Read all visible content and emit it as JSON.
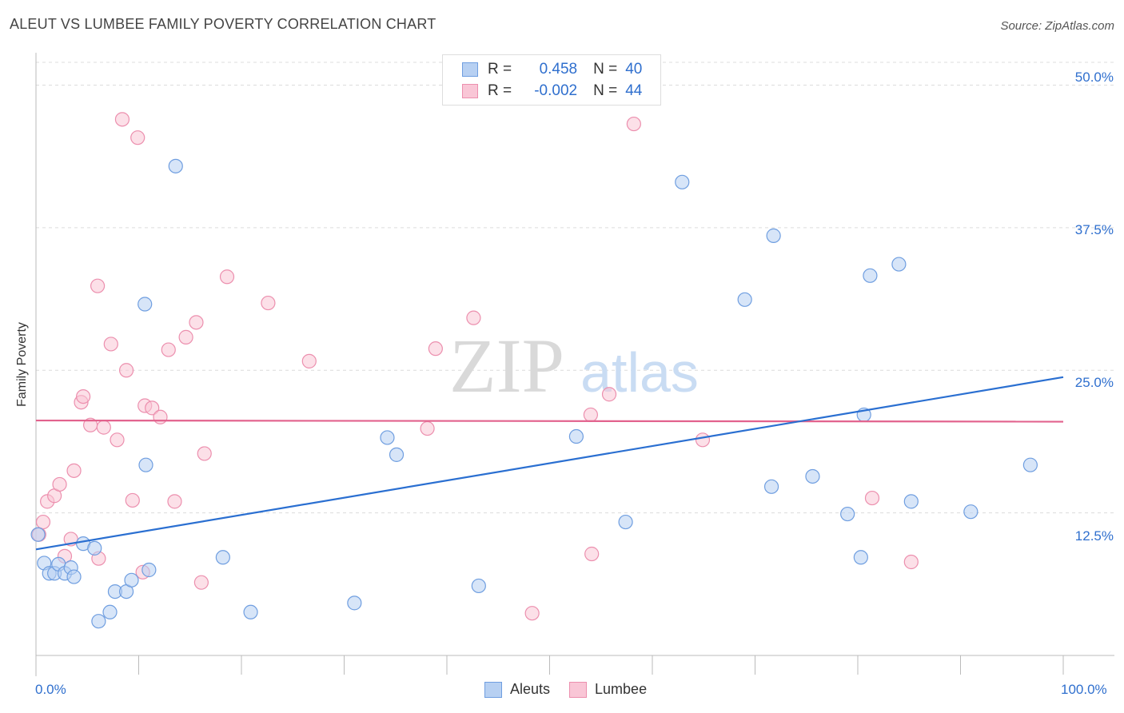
{
  "header": {
    "title": "ALEUT VS LUMBEE FAMILY POVERTY CORRELATION CHART",
    "source": "Source: ZipAtlas.com"
  },
  "legend": {
    "r_label": "R =",
    "n_label": "N =",
    "rows": [
      {
        "r": "0.458",
        "n": "40"
      },
      {
        "r": "-0.002",
        "n": "44"
      }
    ]
  },
  "watermark": {
    "zip": "ZIP",
    "atlas": "atlas"
  },
  "colors": {
    "blue_fill": "#b7d0f2",
    "blue_stroke": "#6f9ee0",
    "blue_line": "#2a6fd1",
    "pink_fill": "#f9c6d6",
    "pink_stroke": "#ec8fae",
    "pink_line": "#e2628d"
  },
  "chart_data": {
    "type": "scatter",
    "title": "ALEUT VS LUMBEE FAMILY POVERTY CORRELATION CHART",
    "xlabel": "",
    "ylabel": "Family Poverty",
    "xlim": [
      0,
      100
    ],
    "ylim": [
      0,
      52
    ],
    "x_tick_labels": [
      "0.0%",
      "100.0%"
    ],
    "y_ticks": [
      12.5,
      25.0,
      37.5,
      50.0
    ],
    "y_tick_labels": [
      "12.5%",
      "25.0%",
      "37.5%",
      "50.0%"
    ],
    "grid": true,
    "legend_position": "top-center",
    "series": [
      {
        "name": "Aleuts",
        "r": 0.458,
        "n": 40,
        "trend": [
          [
            0,
            9.3
          ],
          [
            100,
            24.4
          ]
        ],
        "points": [
          [
            0.2,
            10.6
          ],
          [
            0.8,
            8.1
          ],
          [
            1.3,
            7.2
          ],
          [
            1.8,
            7.2
          ],
          [
            2.2,
            8.0
          ],
          [
            2.8,
            7.2
          ],
          [
            3.4,
            7.7
          ],
          [
            3.7,
            6.9
          ],
          [
            4.6,
            9.8
          ],
          [
            5.7,
            9.4
          ],
          [
            6.1,
            3.0
          ],
          [
            7.2,
            3.8
          ],
          [
            7.7,
            5.6
          ],
          [
            8.8,
            5.6
          ],
          [
            9.3,
            6.6
          ],
          [
            10.6,
            30.8
          ],
          [
            10.7,
            16.7
          ],
          [
            11.0,
            7.5
          ],
          [
            13.6,
            42.9
          ],
          [
            18.2,
            8.6
          ],
          [
            20.9,
            3.8
          ],
          [
            31.0,
            4.6
          ],
          [
            34.2,
            19.1
          ],
          [
            35.1,
            17.6
          ],
          [
            43.1,
            6.1
          ],
          [
            52.6,
            19.2
          ],
          [
            57.4,
            11.7
          ],
          [
            62.9,
            41.5
          ],
          [
            69.0,
            31.2
          ],
          [
            71.6,
            14.8
          ],
          [
            71.8,
            36.8
          ],
          [
            75.6,
            15.7
          ],
          [
            79.0,
            12.4
          ],
          [
            80.3,
            8.6
          ],
          [
            80.6,
            21.1
          ],
          [
            81.2,
            33.3
          ],
          [
            84.0,
            34.3
          ],
          [
            85.2,
            13.5
          ],
          [
            91.0,
            12.6
          ],
          [
            96.8,
            16.7
          ]
        ]
      },
      {
        "name": "Lumbee",
        "r": -0.002,
        "n": 44,
        "trend": [
          [
            0,
            20.6
          ],
          [
            100,
            20.5
          ]
        ],
        "points": [
          [
            0.3,
            10.6
          ],
          [
            0.7,
            11.7
          ],
          [
            1.1,
            13.5
          ],
          [
            1.8,
            14.0
          ],
          [
            2.3,
            15.0
          ],
          [
            2.8,
            8.7
          ],
          [
            3.4,
            10.2
          ],
          [
            3.7,
            16.2
          ],
          [
            4.4,
            22.2
          ],
          [
            4.6,
            22.7
          ],
          [
            5.3,
            20.2
          ],
          [
            6.1,
            8.5
          ],
          [
            6.0,
            32.4
          ],
          [
            6.6,
            20.0
          ],
          [
            7.3,
            27.3
          ],
          [
            7.9,
            18.9
          ],
          [
            8.4,
            47.0
          ],
          [
            8.8,
            25.0
          ],
          [
            9.4,
            13.6
          ],
          [
            9.9,
            45.4
          ],
          [
            10.4,
            7.3
          ],
          [
            10.6,
            21.9
          ],
          [
            11.3,
            21.7
          ],
          [
            12.1,
            20.9
          ],
          [
            12.9,
            26.8
          ],
          [
            13.5,
            13.5
          ],
          [
            14.6,
            27.9
          ],
          [
            15.6,
            29.2
          ],
          [
            16.1,
            6.4
          ],
          [
            16.4,
            17.7
          ],
          [
            18.6,
            33.2
          ],
          [
            22.6,
            30.9
          ],
          [
            26.6,
            25.8
          ],
          [
            38.1,
            19.9
          ],
          [
            38.9,
            26.9
          ],
          [
            42.6,
            29.6
          ],
          [
            48.3,
            3.7
          ],
          [
            54.0,
            21.1
          ],
          [
            54.1,
            8.9
          ],
          [
            55.8,
            22.9
          ],
          [
            58.2,
            46.6
          ],
          [
            64.9,
            18.9
          ],
          [
            81.4,
            13.8
          ],
          [
            85.2,
            8.2
          ]
        ]
      }
    ]
  }
}
